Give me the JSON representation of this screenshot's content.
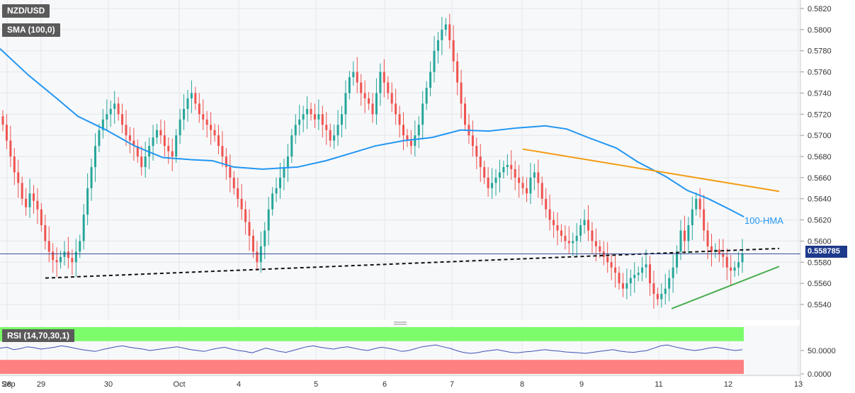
{
  "chart_data": [
    {
      "type": "candlestick",
      "symbol": "NZD/USD",
      "indicator": "SMA (100,0)",
      "annotation": "100-HMA",
      "last_price": "0.558785",
      "ylim": [
        0.5525,
        0.583
      ],
      "y_ticks": [
        "0.5540",
        "0.5560",
        "0.5580",
        "0.5600",
        "0.5620",
        "0.5640",
        "0.5660",
        "0.5680",
        "0.5700",
        "0.5720",
        "0.5740",
        "0.5760",
        "0.5780",
        "0.5800",
        "0.5820"
      ],
      "x_ticks": [
        "Sep",
        "28",
        "29",
        "30",
        "Oct",
        "4",
        "5",
        "6",
        "7",
        "8",
        "9",
        "11",
        "12",
        "13"
      ],
      "series_close": [
        0.571,
        0.5695,
        0.568,
        0.5665,
        0.5655,
        0.564,
        0.5632,
        0.5645,
        0.5638,
        0.563,
        0.5615,
        0.56,
        0.559,
        0.5582,
        0.558,
        0.5585,
        0.559,
        0.5584,
        0.558,
        0.559,
        0.56,
        0.5625,
        0.565,
        0.567,
        0.569,
        0.5705,
        0.5715,
        0.572,
        0.5725,
        0.573,
        0.572,
        0.571,
        0.57,
        0.5695,
        0.569,
        0.568,
        0.567,
        0.568,
        0.569,
        0.5698,
        0.5705,
        0.57,
        0.569,
        0.5685,
        0.568,
        0.57,
        0.5715,
        0.5725,
        0.5735,
        0.574,
        0.573,
        0.572,
        0.5715,
        0.571,
        0.5705,
        0.57,
        0.569,
        0.568,
        0.567,
        0.566,
        0.565,
        0.564,
        0.563,
        0.5618,
        0.5605,
        0.559,
        0.558,
        0.5595,
        0.561,
        0.563,
        0.5645,
        0.565,
        0.566,
        0.567,
        0.568,
        0.57,
        0.571,
        0.5715,
        0.572,
        0.5725,
        0.572,
        0.5715,
        0.572,
        0.571,
        0.5705,
        0.5695,
        0.57,
        0.571,
        0.572,
        0.574,
        0.5755,
        0.576,
        0.575,
        0.574,
        0.5735,
        0.573,
        0.572,
        0.574,
        0.576,
        0.575,
        0.574,
        0.573,
        0.572,
        0.571,
        0.57,
        0.5695,
        0.569,
        0.57,
        0.571,
        0.573,
        0.5745,
        0.576,
        0.578,
        0.579,
        0.58,
        0.5805,
        0.579,
        0.577,
        0.575,
        0.573,
        0.571,
        0.57,
        0.569,
        0.568,
        0.567,
        0.566,
        0.565,
        0.5655,
        0.566,
        0.5665,
        0.567,
        0.5672,
        0.5668,
        0.566,
        0.5655,
        0.565,
        0.5645,
        0.566,
        0.5665,
        0.5655,
        0.564,
        0.563,
        0.562,
        0.5615,
        0.561,
        0.5605,
        0.56,
        0.5598,
        0.56,
        0.5605,
        0.5615,
        0.562,
        0.561,
        0.56,
        0.5595,
        0.559,
        0.5585,
        0.558,
        0.5575,
        0.557,
        0.556,
        0.5555,
        0.556,
        0.5565,
        0.5568,
        0.557,
        0.5575,
        0.5578,
        0.556,
        0.555,
        0.5545,
        0.555,
        0.5555,
        0.5565,
        0.5575,
        0.559,
        0.561,
        0.56,
        0.5615,
        0.563,
        0.564,
        0.563,
        0.561,
        0.5595,
        0.559,
        0.5592,
        0.5588,
        0.5585,
        0.5575,
        0.5572,
        0.5575,
        0.558,
        0.5588
      ],
      "series": [
        {
          "name": "100-HMA",
          "color": "#2196f3",
          "points": [
            [
              0,
              0.5782
            ],
            [
              40,
              0.5757
            ],
            [
              80,
              0.5735
            ],
            [
              110,
              0.5718
            ],
            [
              150,
              0.5705
            ],
            [
              190,
              0.569
            ],
            [
              230,
              0.5679
            ],
            [
              270,
              0.5677
            ],
            [
              300,
              0.5676
            ],
            [
              330,
              0.567
            ],
            [
              370,
              0.5668
            ],
            [
              420,
              0.567
            ],
            [
              460,
              0.5676
            ],
            [
              500,
              0.5684
            ],
            [
              530,
              0.569
            ],
            [
              570,
              0.5695
            ],
            [
              610,
              0.5698
            ],
            [
              650,
              0.5705
            ],
            [
              690,
              0.5704
            ],
            [
              730,
              0.5707
            ],
            [
              770,
              0.5709
            ],
            [
              800,
              0.5706
            ],
            [
              830,
              0.5698
            ],
            [
              870,
              0.5688
            ],
            [
              900,
              0.5675
            ],
            [
              940,
              0.5661
            ],
            [
              970,
              0.5648
            ],
            [
              1000,
              0.564
            ],
            [
              1030,
              0.563
            ],
            [
              1050,
              0.5623
            ]
          ]
        },
        {
          "name": "",
          "color": "#f39c12",
          "points": [
            [
              738,
              0.5687
            ],
            [
              1100,
              0.5647
            ]
          ],
          "dash": ""
        },
        {
          "name": "",
          "color": "#111111",
          "points": [
            [
              64,
              0.5565
            ],
            [
              1100,
              0.5593
            ]
          ],
          "dash": "5,4"
        },
        {
          "name": "",
          "color": "#4caf50",
          "points": [
            [
              948,
              0.5536
            ],
            [
              1100,
              0.5576
            ]
          ],
          "dash": ""
        }
      ]
    },
    {
      "type": "line",
      "indicator": "RSI (14,70,30,1)",
      "ylim": [
        0,
        100
      ],
      "y_ticks": [
        "50.0000",
        "0.0000"
      ],
      "overbought": 70,
      "oversold": 30,
      "values": [
        55,
        57,
        52,
        54,
        58,
        56,
        53,
        55,
        57,
        60,
        58,
        55,
        52,
        50,
        48,
        52,
        55,
        58,
        60,
        57,
        55,
        53,
        50,
        52,
        54,
        56,
        58,
        55,
        52,
        50,
        48,
        52,
        55,
        57,
        53,
        50,
        48,
        45,
        50,
        55,
        52,
        48,
        46,
        50,
        54,
        58,
        60,
        57,
        55,
        53,
        56,
        58,
        55,
        52,
        50,
        54,
        57,
        55,
        52,
        48,
        50,
        54,
        58,
        60,
        62,
        58,
        55,
        50,
        46,
        44,
        45,
        48,
        50,
        52,
        49,
        46,
        45,
        47,
        48,
        50,
        52,
        50,
        49,
        47,
        46,
        45,
        44,
        46,
        48,
        50,
        52,
        49,
        47,
        46,
        48,
        50,
        55,
        60,
        62,
        58,
        55,
        52,
        50,
        52,
        55,
        57,
        55,
        52,
        50,
        52
      ]
    }
  ],
  "labels": {
    "symbol": "NZD/USD",
    "sma": "SMA (100,0)",
    "rsi": "RSI (14,70,30,1)",
    "hma": "100-HMA",
    "price": "0.558785"
  },
  "colors": {
    "up": "#26a69a",
    "down": "#ef5350",
    "hma": "#2196f3",
    "resistance": "#f39c12",
    "support": "#4caf50",
    "rsi_line": "#3f51b5",
    "rsi_over": "#7CFC6A",
    "rsi_under": "#ff8080"
  }
}
